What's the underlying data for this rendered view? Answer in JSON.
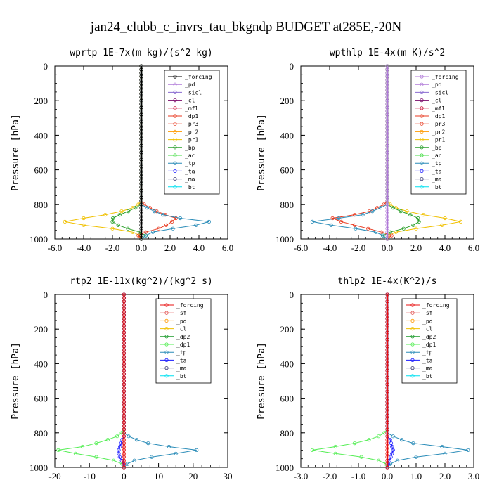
{
  "title": "jan24_clubb_c_invrs_tau_bkgndp  BUDGET at285E,-20N",
  "colors": {
    "forcing": "#000000",
    "pd": "#b07ad8",
    "sicl": "#8a6bd1",
    "cl": "#7a0a6a",
    "mfl": "#c8002a",
    "dp1": "#e83a20",
    "pr3": "#e83a20",
    "pr2": "#ff9a00",
    "pr1": "#f0c000",
    "bp": "#2aa02a",
    "ac": "#44dd44",
    "tp": "#2a8cb8",
    "ta": "#1a1aff",
    "ma": "#303070",
    "bt": "#00e0f0",
    "sf": "#e04848",
    "dp2": "#1a9a2a",
    "red": "#e81010",
    "orange": "#ff9900",
    "yellow": "#f0c000",
    "lightgreen": "#55ee55"
  },
  "chart_data": [
    {
      "type": "line",
      "title": "wprtp   1E-7x(m kg)/(s^2 kg)",
      "ylabel": "Pressure [hPa]",
      "xlim": [
        -6,
        6
      ],
      "ylim": [
        1000,
        0
      ],
      "xticks": [
        "-6.0",
        "-4.0",
        "-2.0",
        "0.0",
        "2.0",
        "4.0",
        "6.0"
      ],
      "yticks": [
        "0",
        "200",
        "400",
        "600",
        "800",
        "1000"
      ],
      "legend": [
        "_forcing",
        "_pd",
        "_sicl",
        "_cl",
        "_mfl",
        "_dp1",
        "_pr3",
        "_pr2",
        "_pr1",
        "_bp",
        "_ac",
        "_tp",
        "_ta",
        "_ma",
        "_bt"
      ],
      "legend_colors": [
        "#000000",
        "#b07ad8",
        "#8a6bd1",
        "#7a0a6a",
        "#c8002a",
        "#e83a20",
        "#e83a20",
        "#ff9a00",
        "#f0c000",
        "#2aa02a",
        "#44dd44",
        "#2a8cb8",
        "#1a1aff",
        "#303070",
        "#00e0f0"
      ],
      "series": [
        {
          "color": "#f0c000",
          "profile": [
            [
              0,
              0
            ],
            [
              790,
              0
            ],
            [
              830,
              -0.8
            ],
            [
              860,
              -2.5
            ],
            [
              880,
              -4.0
            ],
            [
              900,
              -5.3
            ],
            [
              920,
              -4.0
            ],
            [
              940,
              -2.0
            ],
            [
              960,
              -0.6
            ],
            [
              980,
              -0.1
            ],
            [
              1000,
              0
            ]
          ]
        },
        {
          "color": "#2aa02a",
          "profile": [
            [
              0,
              0
            ],
            [
              800,
              0
            ],
            [
              830,
              -0.6
            ],
            [
              860,
              -1.5
            ],
            [
              890,
              -2.2
            ],
            [
              920,
              -1.6
            ],
            [
              950,
              -0.6
            ],
            [
              970,
              0.4
            ],
            [
              990,
              0.2
            ],
            [
              1000,
              0
            ]
          ]
        },
        {
          "color": "#e83a20",
          "profile": [
            [
              0,
              0
            ],
            [
              790,
              0
            ],
            [
              820,
              0.6
            ],
            [
              850,
              1.3
            ],
            [
              880,
              2.4
            ],
            [
              910,
              2.0
            ],
            [
              940,
              1.2
            ],
            [
              960,
              0.3
            ],
            [
              980,
              -0.2
            ],
            [
              1000,
              0
            ]
          ]
        },
        {
          "color": "#2a8cb8",
          "profile": [
            [
              0,
              0
            ],
            [
              800,
              0
            ],
            [
              830,
              0.6
            ],
            [
              860,
              1.5
            ],
            [
              890,
              3.3
            ],
            [
              900,
              4.7
            ],
            [
              920,
              3.8
            ],
            [
              940,
              2.2
            ],
            [
              960,
              0.8
            ],
            [
              985,
              0.2
            ],
            [
              1000,
              0
            ]
          ]
        },
        {
          "color": "#000000",
          "profile": [
            [
              0,
              0
            ],
            [
              1000,
              0
            ]
          ]
        }
      ]
    },
    {
      "type": "line",
      "title": "wpthlp   1E-4x(m K)/s^2",
      "ylabel": "Pressure [hPa]",
      "xlim": [
        -6,
        6
      ],
      "ylim": [
        1000,
        0
      ],
      "xticks": [
        "-6.0",
        "-4.0",
        "-2.0",
        "0.0",
        "2.0",
        "4.0",
        "6.0"
      ],
      "yticks": [
        "0",
        "200",
        "400",
        "600",
        "800",
        "1000"
      ],
      "legend": [
        "_forcing",
        "_pd",
        "_sicl",
        "_cl",
        "_mfl",
        "_dp1",
        "_pr3",
        "_pr2",
        "_pr1",
        "_bp",
        "_ac",
        "_tp",
        "_ta",
        "_ma",
        "_bt"
      ],
      "legend_colors": [
        "#b07ad8",
        "#b07ad8",
        "#8a6bd1",
        "#7a0a6a",
        "#c8002a",
        "#e83a20",
        "#e83a20",
        "#ff9a00",
        "#f0c000",
        "#2aa02a",
        "#44dd44",
        "#2a8cb8",
        "#1a1aff",
        "#303070",
        "#00e0f0"
      ],
      "series": [
        {
          "color": "#f0c000",
          "profile": [
            [
              0,
              0
            ],
            [
              790,
              0
            ],
            [
              830,
              0.8
            ],
            [
              860,
              2.5
            ],
            [
              880,
              4.0
            ],
            [
              900,
              5.1
            ],
            [
              920,
              3.8
            ],
            [
              940,
              2.0
            ],
            [
              960,
              0.6
            ],
            [
              980,
              0.1
            ],
            [
              1000,
              0
            ]
          ]
        },
        {
          "color": "#2aa02a",
          "profile": [
            [
              0,
              0
            ],
            [
              800,
              0
            ],
            [
              830,
              0.6
            ],
            [
              860,
              1.6
            ],
            [
              890,
              2.4
            ],
            [
              920,
              1.8
            ],
            [
              950,
              0.8
            ],
            [
              970,
              -0.4
            ],
            [
              990,
              -0.2
            ],
            [
              1000,
              0
            ]
          ]
        },
        {
          "color": "#e83a20",
          "profile": [
            [
              0,
              0
            ],
            [
              790,
              0
            ],
            [
              820,
              -0.7
            ],
            [
              850,
              -1.5
            ],
            [
              880,
              -3.8
            ],
            [
              900,
              -3.2
            ],
            [
              930,
              -1.8
            ],
            [
              960,
              -0.4
            ],
            [
              980,
              0.3
            ],
            [
              1000,
              0
            ]
          ]
        },
        {
          "color": "#2a8cb8",
          "profile": [
            [
              0,
              0
            ],
            [
              800,
              0
            ],
            [
              830,
              -0.7
            ],
            [
              860,
              -1.7
            ],
            [
              890,
              -4.2
            ],
            [
              900,
              -5.2
            ],
            [
              920,
              -3.9
            ],
            [
              940,
              -2.2
            ],
            [
              960,
              -0.8
            ],
            [
              985,
              -0.2
            ],
            [
              1000,
              0
            ]
          ]
        },
        {
          "color": "#b07ad8",
          "profile": [
            [
              0,
              0
            ],
            [
              1000,
              0
            ]
          ]
        }
      ]
    },
    {
      "type": "line",
      "title": "rtp2   1E-11x(kg^2)/(kg^2 s)",
      "ylabel": "Pressure [hPa]",
      "xlim": [
        -20,
        30
      ],
      "ylim": [
        1000,
        0
      ],
      "xticks": [
        "-20",
        "-10",
        "0",
        "10",
        "20",
        "30"
      ],
      "yticks": [
        "0",
        "200",
        "400",
        "600",
        "800",
        "1000"
      ],
      "legend": [
        "_forcing",
        "_sf",
        "_pd",
        "_cl",
        "_dp2",
        "_dp1",
        "_tp",
        "_ta",
        "_ma",
        "_bt"
      ],
      "legend_colors": [
        "#e81010",
        "#e04848",
        "#ff9900",
        "#f0c000",
        "#1a9a2a",
        "#55ee55",
        "#2a8cb8",
        "#1a1aff",
        "#303070",
        "#00e0f0"
      ],
      "series": [
        {
          "color": "#55ee55",
          "profile": [
            [
              0,
              0
            ],
            [
              790,
              0
            ],
            [
              820,
              -2
            ],
            [
              850,
              -6
            ],
            [
              880,
              -12
            ],
            [
              900,
              -19
            ],
            [
              920,
              -14
            ],
            [
              940,
              -8
            ],
            [
              960,
              -3
            ],
            [
              980,
              -0.5
            ],
            [
              1000,
              0
            ]
          ]
        },
        {
          "color": "#2a8cb8",
          "profile": [
            [
              0,
              0
            ],
            [
              800,
              0
            ],
            [
              830,
              2
            ],
            [
              860,
              7
            ],
            [
              880,
              13
            ],
            [
              900,
              21
            ],
            [
              920,
              15
            ],
            [
              940,
              8
            ],
            [
              960,
              3
            ],
            [
              985,
              0.5
            ],
            [
              1000,
              0
            ]
          ]
        },
        {
          "color": "#1a1aff",
          "profile": [
            [
              0,
              0
            ],
            [
              820,
              0
            ],
            [
              840,
              -0.5
            ],
            [
              870,
              -1
            ],
            [
              900,
              -1.5
            ],
            [
              930,
              -1.5
            ],
            [
              950,
              -1
            ],
            [
              970,
              -0.3
            ],
            [
              1000,
              0
            ]
          ]
        },
        {
          "color": "#e81010",
          "profile": [
            [
              0,
              0
            ],
            [
              1000,
              0
            ]
          ]
        }
      ]
    },
    {
      "type": "line",
      "title": "thlp2   1E-4x(K^2)/s",
      "ylabel": "Pressure [hPa]",
      "xlim": [
        -3,
        3
      ],
      "ylim": [
        1000,
        0
      ],
      "xticks": [
        "-3.0",
        "-2.0",
        "-1.0",
        "0.0",
        "1.0",
        "2.0",
        "3.0"
      ],
      "yticks": [
        "0",
        "200",
        "400",
        "600",
        "800",
        "1000"
      ],
      "legend": [
        "_forcing",
        "_sf",
        "_pd",
        "_cl",
        "_dp2",
        "_dp1",
        "_tp",
        "_ta",
        "_ma",
        "_bt"
      ],
      "legend_colors": [
        "#e81010",
        "#e04848",
        "#ff9900",
        "#f0c000",
        "#1a9a2a",
        "#55ee55",
        "#2a8cb8",
        "#1a1aff",
        "#303070",
        "#00e0f0"
      ],
      "series": [
        {
          "color": "#55ee55",
          "profile": [
            [
              0,
              0
            ],
            [
              790,
              0
            ],
            [
              820,
              -0.3
            ],
            [
              850,
              -0.8
            ],
            [
              880,
              -1.8
            ],
            [
              900,
              -2.6
            ],
            [
              920,
              -1.8
            ],
            [
              940,
              -0.9
            ],
            [
              960,
              -0.3
            ],
            [
              980,
              -0.05
            ],
            [
              1000,
              0
            ]
          ]
        },
        {
          "color": "#2a8cb8",
          "profile": [
            [
              0,
              0
            ],
            [
              800,
              0
            ],
            [
              830,
              0.3
            ],
            [
              860,
              0.9
            ],
            [
              880,
              1.9
            ],
            [
              900,
              2.8
            ],
            [
              920,
              2.0
            ],
            [
              940,
              1.0
            ],
            [
              960,
              0.35
            ],
            [
              985,
              0.05
            ],
            [
              1000,
              0
            ]
          ]
        },
        {
          "color": "#1a1aff",
          "profile": [
            [
              0,
              0
            ],
            [
              820,
              0
            ],
            [
              840,
              0.1
            ],
            [
              870,
              0.15
            ],
            [
              900,
              0.2
            ],
            [
              930,
              0.15
            ],
            [
              950,
              0.1
            ],
            [
              970,
              0.05
            ],
            [
              1000,
              0
            ]
          ]
        },
        {
          "color": "#e81010",
          "profile": [
            [
              0,
              0
            ],
            [
              1000,
              0
            ]
          ]
        }
      ]
    }
  ]
}
